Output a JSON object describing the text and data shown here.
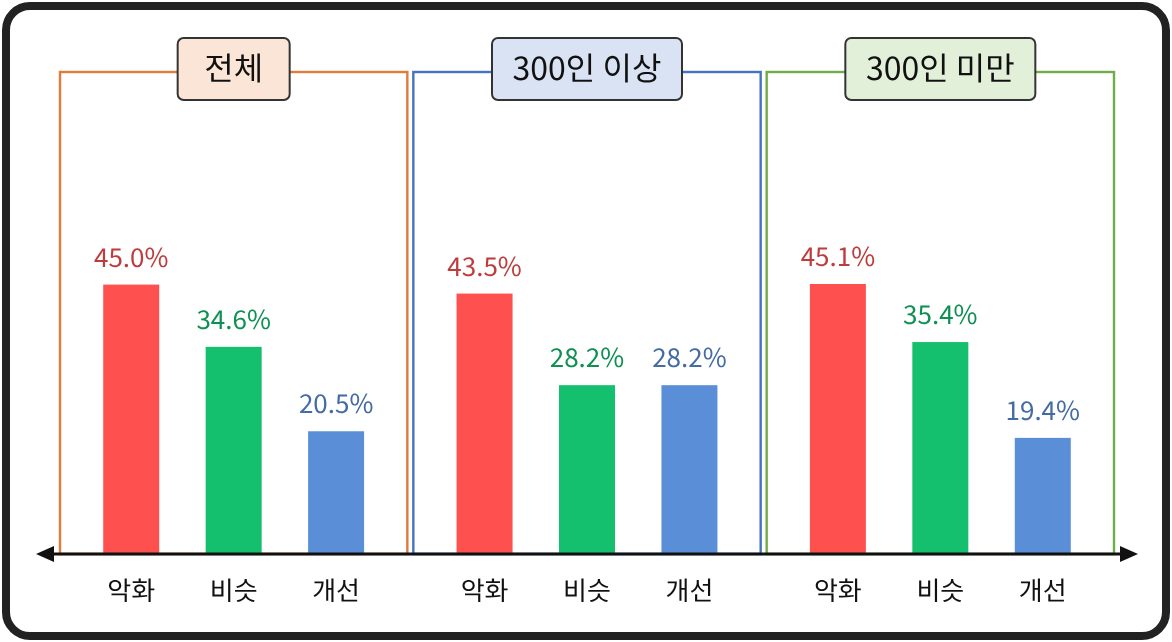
{
  "chart_data": [
    {
      "type": "bar",
      "title": "전체",
      "categories": [
        "악화",
        "비슷",
        "개선"
      ],
      "values": [
        45.0,
        34.6,
        20.5
      ],
      "value_labels": [
        "45.0%",
        "34.6%",
        "20.5%"
      ],
      "colors": [
        "#ff5050",
        "#14c06e",
        "#5a8fd8"
      ]
    },
    {
      "type": "bar",
      "title": "300인 이상",
      "categories": [
        "악화",
        "비슷",
        "개선"
      ],
      "values": [
        43.5,
        28.2,
        28.2
      ],
      "value_labels": [
        "43.5%",
        "28.2%",
        "28.2%"
      ],
      "colors": [
        "#ff5050",
        "#14c06e",
        "#5a8fd8"
      ]
    },
    {
      "type": "bar",
      "title": "300인 미만",
      "categories": [
        "악화",
        "비슷",
        "개선"
      ],
      "values": [
        45.1,
        35.4,
        19.4
      ],
      "value_labels": [
        "45.1%",
        "35.4%",
        "19.4%"
      ],
      "colors": [
        "#ff5050",
        "#14c06e",
        "#5a8fd8"
      ]
    }
  ]
}
